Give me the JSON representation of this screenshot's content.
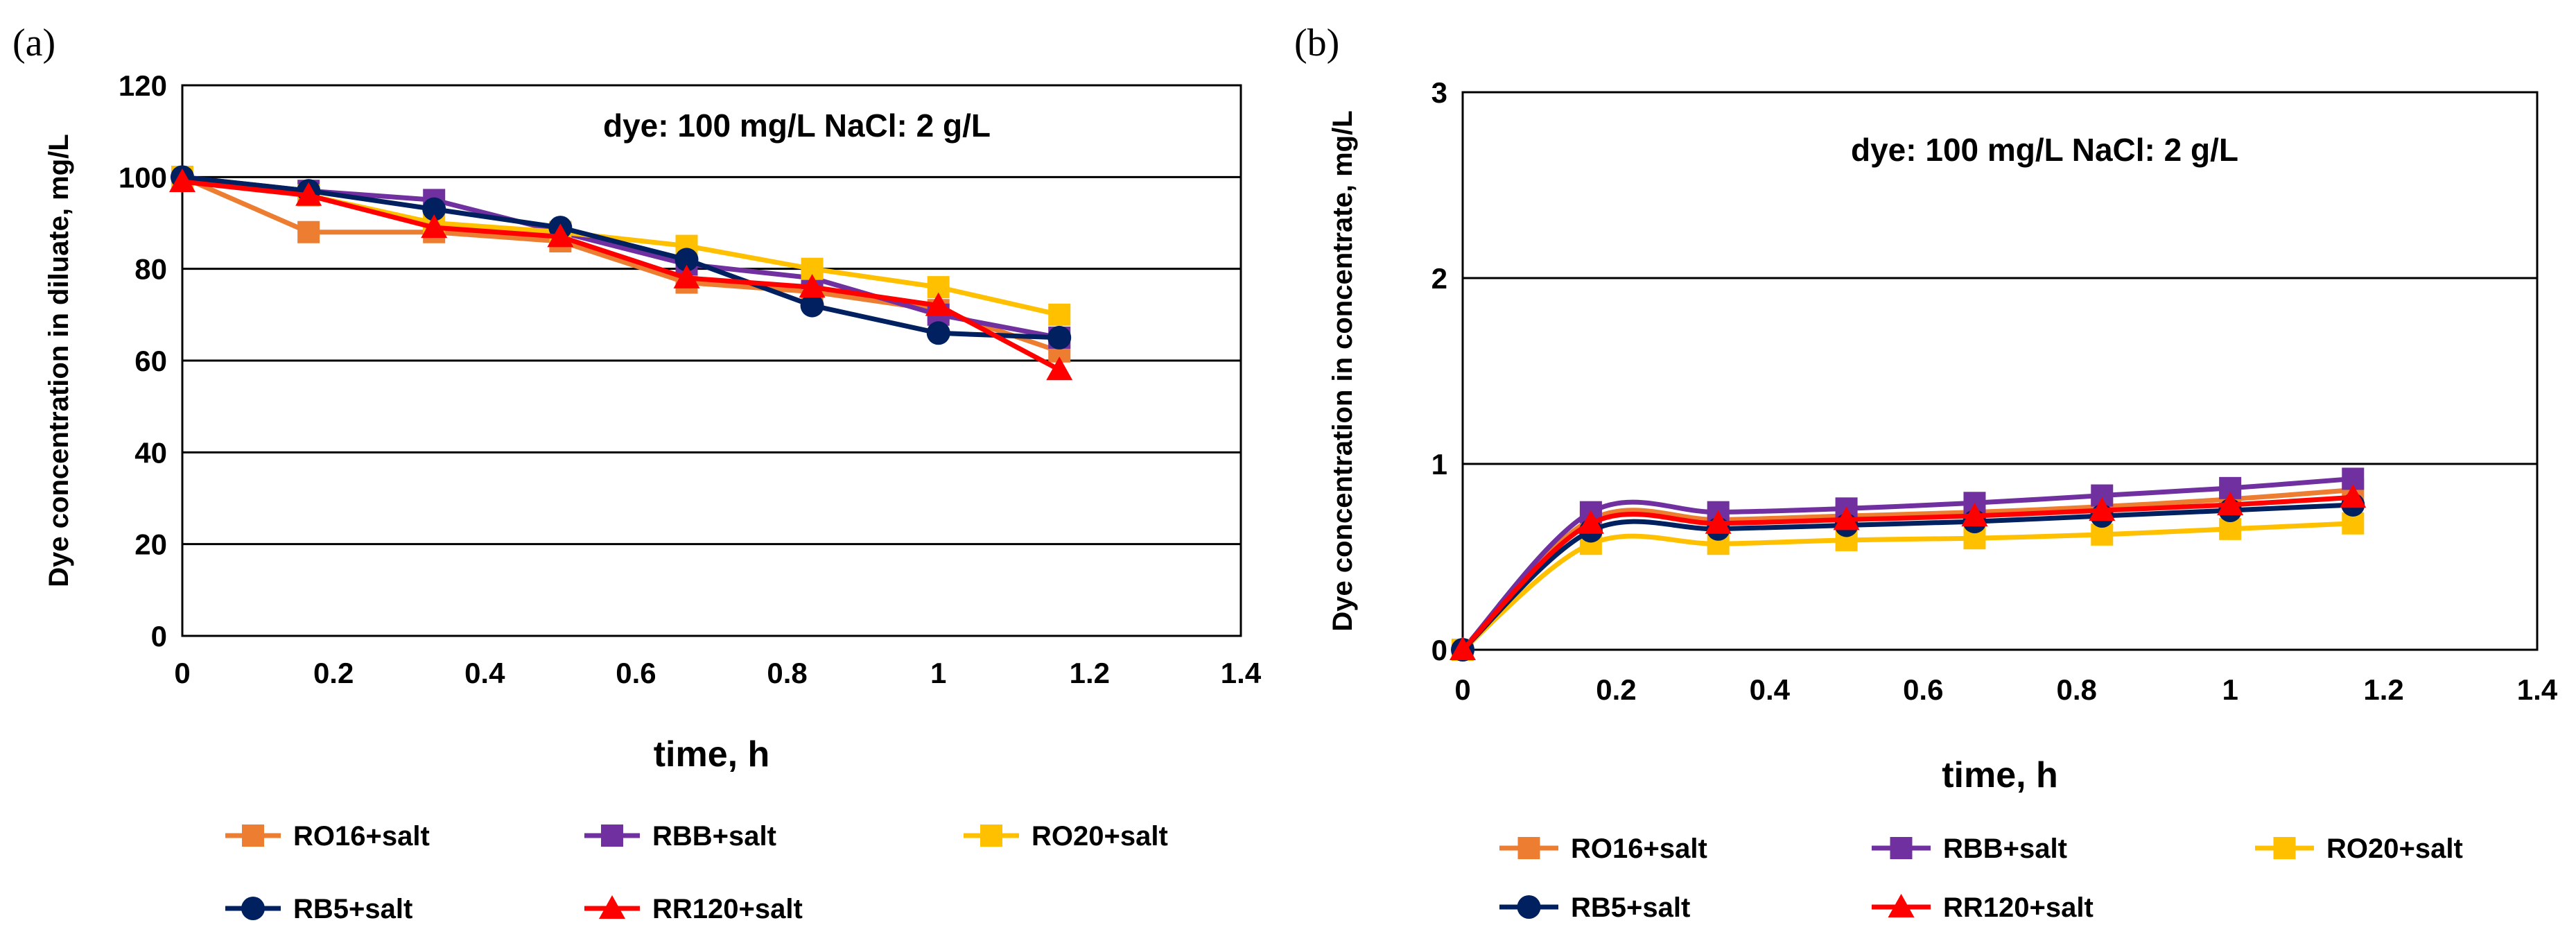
{
  "chart_data": [
    {
      "panel_label": "(a)",
      "type": "line",
      "annotation": "dye: 100 mg/L    NaCl: 2 g/L",
      "xlabel": "time, h",
      "ylabel": "Dye concentration in diluate, mg/L",
      "xlim": [
        0,
        1.4
      ],
      "ylim": [
        0,
        120
      ],
      "xticks": [
        0,
        0.2,
        0.4,
        0.6,
        0.8,
        1,
        1.2,
        1.4
      ],
      "yticks": [
        0,
        20,
        40,
        60,
        80,
        100,
        120
      ],
      "gridlines": "horizontal",
      "smooth": false,
      "x": [
        0,
        0.167,
        0.333,
        0.5,
        0.667,
        0.833,
        1.0,
        1.16
      ],
      "series": [
        {
          "name": "RO16+salt",
          "color": "#ED7D31",
          "marker": "square",
          "values": [
            100,
            88,
            88,
            86,
            77,
            75,
            71,
            62
          ]
        },
        {
          "name": "RBB+salt",
          "color": "#7030A0",
          "marker": "square",
          "values": [
            100,
            97,
            95,
            88,
            81,
            78,
            70,
            65
          ]
        },
        {
          "name": "RO20+salt",
          "color": "#FFC000",
          "marker": "square",
          "values": [
            100,
            96,
            90,
            88,
            85,
            80,
            76,
            70
          ]
        },
        {
          "name": "RB5+salt",
          "color": "#002060",
          "marker": "circle",
          "values": [
            100,
            97,
            93,
            89,
            82,
            72,
            66,
            65
          ]
        },
        {
          "name": "RR120+salt",
          "color": "#FF0000",
          "marker": "triangle",
          "values": [
            99,
            96,
            89,
            87,
            78,
            76,
            72,
            58
          ]
        }
      ]
    },
    {
      "panel_label": "(b)",
      "type": "line",
      "annotation": "dye: 100 mg/L    NaCl: 2 g/L",
      "xlabel": "time, h",
      "ylabel": "Dye concentration in concentrate, mg/L",
      "xlim": [
        0,
        1.4
      ],
      "ylim": [
        0,
        3
      ],
      "xticks": [
        0,
        0.2,
        0.4,
        0.6,
        0.8,
        1,
        1.2,
        1.4
      ],
      "yticks": [
        0,
        1,
        2,
        3
      ],
      "gridlines": "horizontal",
      "smooth": true,
      "x": [
        0,
        0.167,
        0.333,
        0.5,
        0.667,
        0.833,
        1.0,
        1.16
      ],
      "series": [
        {
          "name": "RO16+salt",
          "color": "#ED7D31",
          "marker": "square",
          "values": [
            0,
            0.7,
            0.7,
            0.72,
            0.74,
            0.77,
            0.81,
            0.86
          ]
        },
        {
          "name": "RBB+salt",
          "color": "#7030A0",
          "marker": "square",
          "values": [
            0,
            0.74,
            0.74,
            0.76,
            0.79,
            0.83,
            0.87,
            0.92
          ]
        },
        {
          "name": "RO20+salt",
          "color": "#FFC000",
          "marker": "square",
          "values": [
            0,
            0.57,
            0.57,
            0.59,
            0.6,
            0.62,
            0.65,
            0.68
          ]
        },
        {
          "name": "RB5+salt",
          "color": "#002060",
          "marker": "circle",
          "values": [
            0,
            0.64,
            0.65,
            0.67,
            0.69,
            0.72,
            0.75,
            0.78
          ]
        },
        {
          "name": "RR120+salt",
          "color": "#FF0000",
          "marker": "triangle",
          "values": [
            0,
            0.68,
            0.68,
            0.7,
            0.72,
            0.75,
            0.78,
            0.82
          ]
        }
      ]
    }
  ]
}
